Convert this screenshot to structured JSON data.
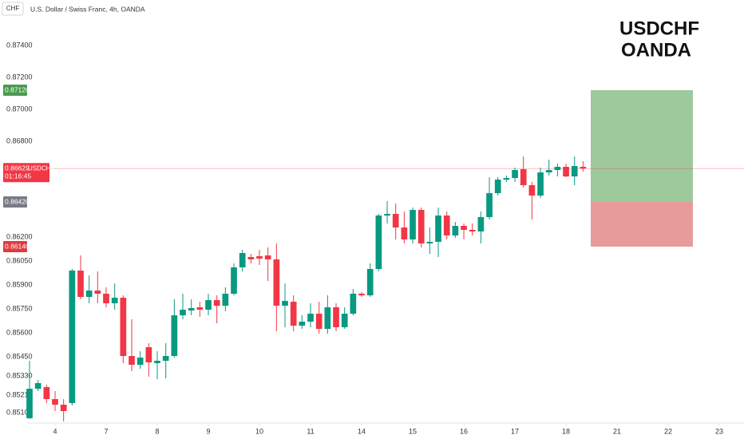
{
  "chart_data": {
    "type": "candlestick",
    "symbol_button": "CHF",
    "legend": "U.S. Dollar / Swiss Franc, 4h, OANDA",
    "annotation": [
      "USDCHF",
      "OANDA"
    ],
    "up_color": "#089981",
    "down_color": "#f23645",
    "open": [
      0.85065,
      0.8525,
      0.8526,
      0.85185,
      0.8515,
      0.8516,
      0.8599,
      0.85825,
      0.85865,
      0.85845,
      0.85785,
      0.8582,
      0.85455,
      0.854,
      0.8551,
      0.8541,
      0.85425,
      0.85455,
      0.8571,
      0.8574,
      0.8576,
      0.85745,
      0.85805,
      0.8577,
      0.85845,
      0.8601,
      0.86075,
      0.8608,
      0.86085,
      0.8606,
      0.8577,
      0.85795,
      0.85645,
      0.8567,
      0.8572,
      0.85625,
      0.8576,
      0.85635,
      0.8572,
      0.85845,
      0.85835,
      0.86,
      0.86335,
      0.86345,
      0.8626,
      0.86185,
      0.8637,
      0.8616,
      0.8617,
      0.86335,
      0.8621,
      0.8627,
      0.86245,
      0.86235,
      0.86325,
      0.86475,
      0.8656,
      0.8657,
      0.86625,
      0.86525,
      0.8646,
      0.86605,
      0.8662,
      0.8664,
      0.8658,
      0.8664
    ],
    "high": [
      0.85425,
      0.85305,
      0.85275,
      0.85235,
      0.85185,
      0.86,
      0.86085,
      0.8596,
      0.85985,
      0.85885,
      0.8591,
      0.85835,
      0.85685,
      0.85485,
      0.85535,
      0.85485,
      0.85535,
      0.8581,
      0.85845,
      0.8581,
      0.85795,
      0.85845,
      0.85835,
      0.85885,
      0.86035,
      0.8612,
      0.86095,
      0.8612,
      0.86135,
      0.8616,
      0.8591,
      0.85835,
      0.8571,
      0.85785,
      0.85795,
      0.85835,
      0.85785,
      0.8576,
      0.85875,
      0.85855,
      0.86035,
      0.86345,
      0.86425,
      0.8641,
      0.8636,
      0.86385,
      0.86385,
      0.8626,
      0.86385,
      0.8636,
      0.86295,
      0.86285,
      0.86285,
      0.8636,
      0.86575,
      0.86575,
      0.86585,
      0.86635,
      0.86705,
      0.86545,
      0.86635,
      0.86685,
      0.8666,
      0.8666,
      0.86705,
      0.86675
    ],
    "low": [
      0.8506,
      0.85235,
      0.8516,
      0.8511,
      0.85045,
      0.85145,
      0.8581,
      0.85785,
      0.85785,
      0.8576,
      0.85745,
      0.8541,
      0.8536,
      0.85375,
      0.85325,
      0.8531,
      0.85315,
      0.85445,
      0.85685,
      0.8571,
      0.857,
      0.8571,
      0.8566,
      0.85735,
      0.85835,
      0.85985,
      0.86035,
      0.86025,
      0.85925,
      0.8561,
      0.85635,
      0.8561,
      0.85625,
      0.85635,
      0.85595,
      0.85595,
      0.8561,
      0.85625,
      0.8571,
      0.85825,
      0.85825,
      0.85985,
      0.86285,
      0.86185,
      0.8616,
      0.8616,
      0.86135,
      0.86095,
      0.86075,
      0.86185,
      0.86195,
      0.86185,
      0.8621,
      0.8616,
      0.8631,
      0.8646,
      0.86545,
      0.86545,
      0.8651,
      0.8631,
      0.86445,
      0.86585,
      0.8658,
      0.86575,
      0.86525,
      0.8661
    ],
    "close": [
      0.8525,
      0.85285,
      0.85185,
      0.8515,
      0.8511,
      0.8599,
      0.85825,
      0.85865,
      0.85845,
      0.85785,
      0.8582,
      0.85455,
      0.854,
      0.85445,
      0.85415,
      0.85425,
      0.85455,
      0.8571,
      0.85745,
      0.85755,
      0.85745,
      0.85805,
      0.8577,
      0.85845,
      0.8601,
      0.861,
      0.8606,
      0.86065,
      0.8606,
      0.8577,
      0.858,
      0.85645,
      0.8567,
      0.8572,
      0.85625,
      0.8576,
      0.85635,
      0.8572,
      0.85845,
      0.85835,
      0.86,
      0.86335,
      0.86345,
      0.8626,
      0.86185,
      0.8637,
      0.8616,
      0.8617,
      0.86335,
      0.8621,
      0.8627,
      0.86245,
      0.86235,
      0.86325,
      0.86475,
      0.8656,
      0.8657,
      0.8662,
      0.86525,
      0.8646,
      0.86605,
      0.8662,
      0.8664,
      0.8658,
      0.86645,
      0.86629
    ],
    "ylim": [
      0.85035,
      0.87685
    ],
    "yticks": [
      {
        "value": 0.874,
        "label": "0.87400"
      },
      {
        "value": 0.872,
        "label": "0.87200"
      },
      {
        "value": 0.87,
        "label": "0.87000"
      },
      {
        "value": 0.868,
        "label": "0.86800"
      },
      {
        "value": 0.862,
        "label": "0.86200"
      },
      {
        "value": 0.8605,
        "label": "0.86050"
      },
      {
        "value": 0.859,
        "label": "0.85900"
      },
      {
        "value": 0.8575,
        "label": "0.85750"
      },
      {
        "value": 0.856,
        "label": "0.85600"
      },
      {
        "value": 0.8545,
        "label": "0.85450"
      },
      {
        "value": 0.8533,
        "label": "0.85330"
      },
      {
        "value": 0.8521,
        "label": "0.85210"
      },
      {
        "value": 0.851,
        "label": "0.85100"
      }
    ],
    "xlim": [
      -0.28,
      83.9
    ],
    "xticks": [
      {
        "value": 3,
        "label": "4"
      },
      {
        "value": 9,
        "label": "7"
      },
      {
        "value": 15,
        "label": "8"
      },
      {
        "value": 21,
        "label": "9"
      },
      {
        "value": 27,
        "label": "10"
      },
      {
        "value": 33,
        "label": "11"
      },
      {
        "value": 39,
        "label": "14"
      },
      {
        "value": 45,
        "label": "15"
      },
      {
        "value": 51,
        "label": "16"
      },
      {
        "value": 57,
        "label": "17"
      },
      {
        "value": 63,
        "label": "18"
      },
      {
        "value": 69,
        "label": "21"
      },
      {
        "value": 75,
        "label": "22"
      },
      {
        "value": 81,
        "label": "23"
      }
    ],
    "last_price": {
      "symbol": "USDCHF",
      "countdown": "01:16:45"
    },
    "position": {
      "take_profit": {
        "value": 0.8712,
        "label": "0.87120"
      },
      "entry": {
        "value": 0.8642,
        "label": "0.86420"
      },
      "stop_loss": {
        "value": 0.8614,
        "label": "0.86140"
      },
      "profit_color": "#9ec99c",
      "loss_color": "#e89b9b"
    }
  }
}
